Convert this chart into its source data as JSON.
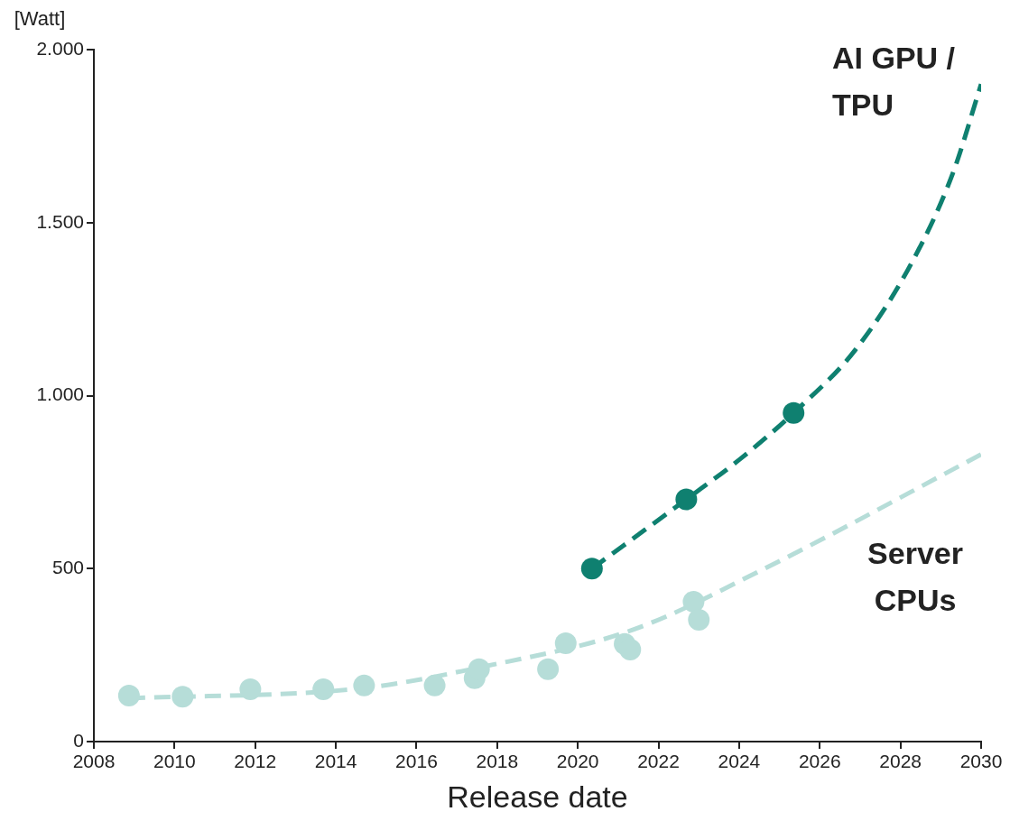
{
  "chart_data": {
    "type": "scatter",
    "xlabel": "Release date",
    "ylabel": "[Watt]",
    "xlim": [
      2008,
      2030
    ],
    "xticks": [
      2008,
      2010,
      2012,
      2014,
      2016,
      2018,
      2020,
      2022,
      2024,
      2026,
      2028,
      2030
    ],
    "ylim": [
      0,
      2000
    ],
    "yticks": [
      {
        "value": 0,
        "label": "0"
      },
      {
        "value": 500,
        "label": "500"
      },
      {
        "value": 1000,
        "label": "1.000"
      },
      {
        "value": 1500,
        "label": "1.500"
      },
      {
        "value": 2000,
        "label": "2.000"
      }
    ],
    "grid": false,
    "legend": false,
    "series": [
      {
        "type": "line",
        "color": "#0f8070",
        "line_style": "dashed",
        "marker": "none",
        "x": [
          2020.35,
          2022.69,
          2024.05,
          2025.35,
          2026.88,
          2028.27,
          2029.3,
          2030
        ],
        "values": [
          500,
          700,
          819,
          950,
          1132,
          1382,
          1643,
          1900
        ]
      },
      {
        "type": "line",
        "color": "#b6ddd8",
        "line_style": "dashed",
        "marker": "none",
        "x": [
          2008.87,
          2014.64,
          2017.55,
          2021.36,
          2024.73,
          2030
        ],
        "values": [
          125,
          154,
          214,
          323,
          506,
          830
        ]
      },
      {
        "name": "AI GPU / TPU",
        "color": "#0f8070",
        "marker": "circle",
        "x": [
          2020.35,
          2022.69,
          2025.35
        ],
        "values": [
          500,
          700,
          950
        ]
      },
      {
        "name": "Server CPUs",
        "color": "#b6ddd8",
        "marker": "circle",
        "x": [
          2008.87,
          2010.2,
          2011.88,
          2013.69,
          2014.7,
          2016.45,
          2017.44,
          2017.55,
          2019.26,
          2019.7,
          2021.16,
          2021.3,
          2022.87,
          2023.0
        ],
        "values": [
          133,
          130,
          151,
          151,
          162,
          162,
          183,
          209,
          209,
          284,
          282,
          266,
          404,
          352
        ]
      }
    ]
  }
}
